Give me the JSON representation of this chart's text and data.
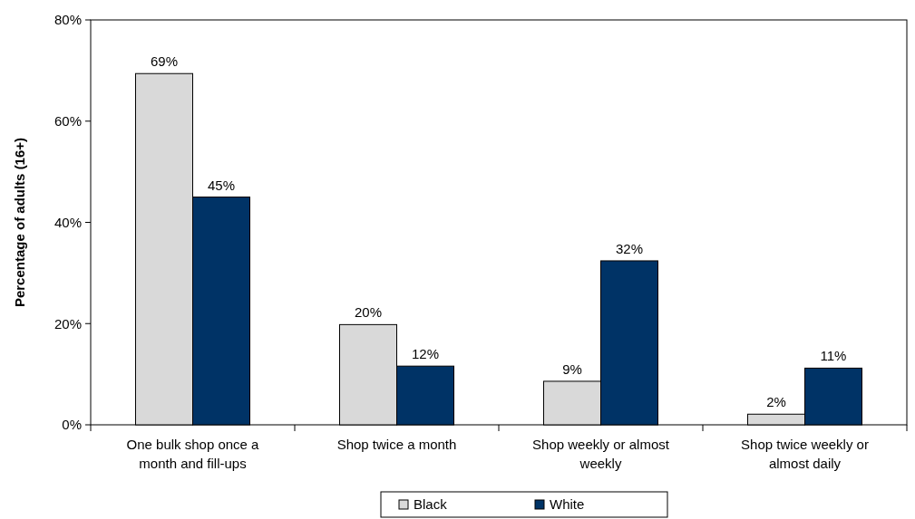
{
  "chart_data": {
    "type": "bar",
    "ylabel": "Percentage of adults (16+)",
    "categories": [
      "One bulk shop once a month and fill-ups",
      "Shop twice a month",
      "Shop weekly or almost weekly",
      "Shop twice weekly or almost daily"
    ],
    "series": [
      {
        "name": "Black",
        "color": "#d9d9d9",
        "values": [
          69.4,
          19.8,
          8.6,
          2.1
        ],
        "value_labels": [
          "69%",
          "20%",
          "9%",
          "2%"
        ]
      },
      {
        "name": "White",
        "color": "#003366",
        "values": [
          45,
          11.6,
          32.4,
          11.2
        ],
        "value_labels": [
          "45%",
          "12%",
          "32%",
          "11%"
        ]
      }
    ],
    "ylim": [
      0,
      80
    ],
    "yticks": [
      {
        "value": 0,
        "label": "0%"
      },
      {
        "value": 20,
        "label": "20%"
      },
      {
        "value": 40,
        "label": "40%"
      },
      {
        "value": 60,
        "label": "60%"
      },
      {
        "value": 80,
        "label": "80%"
      }
    ],
    "grid": false,
    "legend": "bottom"
  }
}
